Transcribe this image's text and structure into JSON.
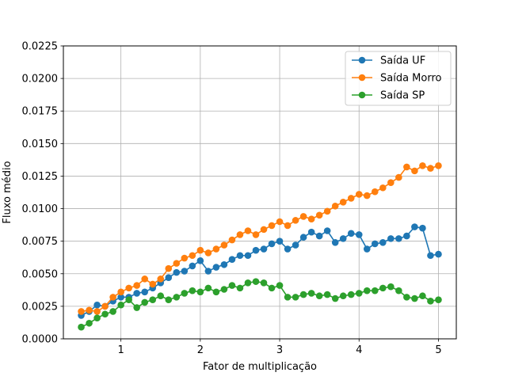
{
  "chart_data": {
    "type": "line",
    "xlabel": "Fator de multiplicação",
    "ylabel": "Fluxo médio",
    "xlim": [
      0.275,
      5.225
    ],
    "ylim": [
      0,
      0.0225
    ],
    "grid": true,
    "legend_position": "top-right",
    "x_ticks": [
      {
        "value": 1,
        "label": "1"
      },
      {
        "value": 2,
        "label": "2"
      },
      {
        "value": 3,
        "label": "3"
      },
      {
        "value": 4,
        "label": "4"
      },
      {
        "value": 5,
        "label": "5"
      }
    ],
    "y_ticks": [
      {
        "value": 0,
        "label": "0.0000"
      },
      {
        "value": 0.0025,
        "label": "0.0025"
      },
      {
        "value": 0.005,
        "label": "0.0050"
      },
      {
        "value": 0.0075,
        "label": "0.0075"
      },
      {
        "value": 0.01,
        "label": "0.0100"
      },
      {
        "value": 0.0125,
        "label": "0.0125"
      },
      {
        "value": 0.015,
        "label": "0.0150"
      },
      {
        "value": 0.0175,
        "label": "0.0175"
      },
      {
        "value": 0.02,
        "label": "0.0200"
      },
      {
        "value": 0.0225,
        "label": "0.0225"
      }
    ],
    "x": [
      0.5,
      0.6,
      0.7,
      0.8,
      0.9,
      1.0,
      1.1,
      1.2,
      1.3,
      1.4,
      1.5,
      1.6,
      1.7,
      1.8,
      1.9,
      2.0,
      2.1,
      2.2,
      2.3,
      2.4,
      2.5,
      2.6,
      2.7,
      2.8,
      2.9,
      3.0,
      3.1,
      3.2,
      3.3,
      3.4,
      3.5,
      3.6,
      3.7,
      3.8,
      3.9,
      4.0,
      4.1,
      4.2,
      4.3,
      4.4,
      4.5,
      4.6,
      4.7,
      4.8,
      4.9,
      5.0
    ],
    "series": [
      {
        "name": "Saída UF",
        "color": "#1f77b4",
        "values": [
          0.0018,
          0.0021,
          0.0026,
          0.0025,
          0.0029,
          0.0032,
          0.0032,
          0.0035,
          0.0036,
          0.0039,
          0.0043,
          0.0047,
          0.0051,
          0.0052,
          0.0056,
          0.006,
          0.0052,
          0.0055,
          0.0057,
          0.0061,
          0.0064,
          0.0064,
          0.0068,
          0.0069,
          0.0073,
          0.0075,
          0.0069,
          0.0072,
          0.0078,
          0.0082,
          0.0079,
          0.0083,
          0.0074,
          0.0077,
          0.0081,
          0.008,
          0.0069,
          0.0073,
          0.0074,
          0.0077,
          0.0077,
          0.0079,
          0.0086,
          0.0085,
          0.0064,
          0.0065
        ]
      },
      {
        "name": "Saída Morro",
        "color": "#ff7f0e",
        "values": [
          0.0021,
          0.0022,
          0.0021,
          0.0025,
          0.0032,
          0.0036,
          0.0039,
          0.0041,
          0.0046,
          0.0042,
          0.0046,
          0.0054,
          0.0058,
          0.0062,
          0.0064,
          0.0068,
          0.0066,
          0.0069,
          0.0072,
          0.0076,
          0.008,
          0.0083,
          0.008,
          0.0084,
          0.0087,
          0.009,
          0.0087,
          0.0091,
          0.0094,
          0.0092,
          0.0095,
          0.0098,
          0.0102,
          0.0105,
          0.0108,
          0.0111,
          0.011,
          0.0113,
          0.0116,
          0.012,
          0.0124,
          0.0132,
          0.0129,
          0.0133,
          0.0131,
          0.0133
        ]
      },
      {
        "name": "Saída SP",
        "color": "#2ca02c",
        "values": [
          0.0009,
          0.0012,
          0.0016,
          0.0019,
          0.0021,
          0.0026,
          0.003,
          0.0024,
          0.0028,
          0.003,
          0.0033,
          0.003,
          0.0032,
          0.0035,
          0.0037,
          0.0036,
          0.0039,
          0.0036,
          0.0038,
          0.0041,
          0.0039,
          0.0043,
          0.0044,
          0.0043,
          0.0039,
          0.0041,
          0.0032,
          0.0032,
          0.0034,
          0.0035,
          0.0033,
          0.0034,
          0.0031,
          0.0033,
          0.0034,
          0.0035,
          0.0037,
          0.0037,
          0.0039,
          0.004,
          0.0037,
          0.0032,
          0.0031,
          0.0033,
          0.0029,
          0.003
        ]
      }
    ]
  }
}
